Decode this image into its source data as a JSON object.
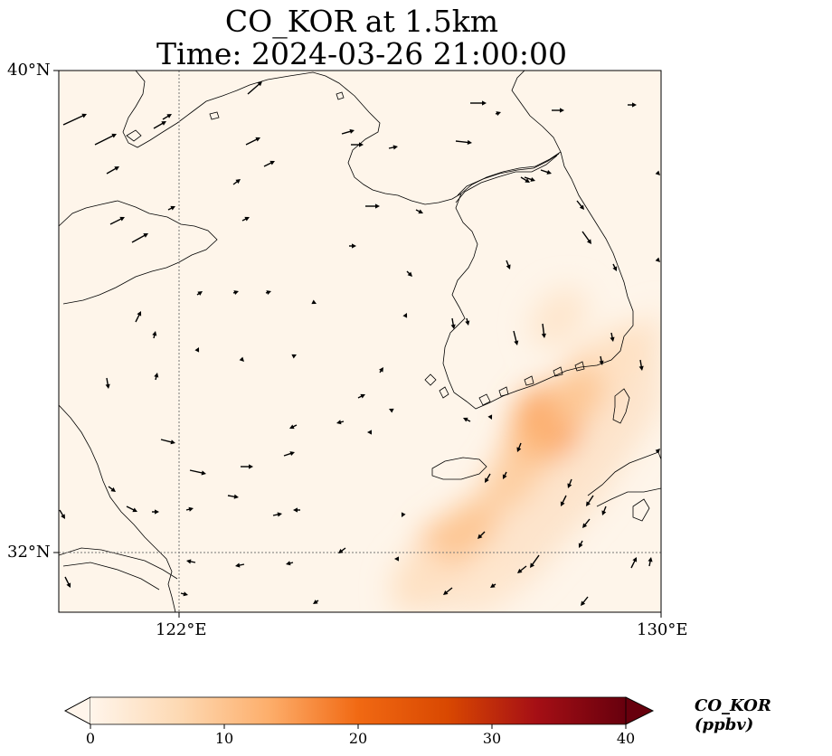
{
  "title": {
    "line1": "CO_KOR at 1.5km",
    "line2": "Time: 2024-03-26 21:00:00"
  },
  "axes": {
    "lat_ticks": [
      "40°N",
      "32°N"
    ],
    "lon_ticks": [
      "122°E",
      "130°E"
    ],
    "lat_range": [
      31,
      40
    ],
    "lon_range": [
      120,
      130
    ]
  },
  "colorbar": {
    "label": "CO_KOR (ppbv)",
    "ticks": [
      "0",
      "10",
      "20",
      "30",
      "40"
    ],
    "range": [
      0,
      40
    ],
    "extend": "both",
    "colors": [
      "#fff5eb",
      "#fdd9b3",
      "#fdae6b",
      "#f16913",
      "#d94801",
      "#a50f15",
      "#67000d"
    ]
  },
  "colors": {
    "background": "#fef5ea",
    "plume_light": "#fde0c4",
    "plume_mid": "#fcc79a",
    "plume_peak": "#f9a679",
    "coastline": "#000000",
    "grid": "#777777"
  },
  "chart_data": {
    "type": "heatmap",
    "variable": "CO_KOR",
    "units": "ppbv",
    "vmin": 0,
    "vmax": 40,
    "plume_cells": [
      {
        "lon": 128.2,
        "lat": 34.0,
        "value": 13
      },
      {
        "lon": 128.0,
        "lat": 34.3,
        "value": 12
      },
      {
        "lon": 127.8,
        "lat": 33.7,
        "value": 10
      },
      {
        "lon": 126.4,
        "lat": 32.1,
        "value": 10
      },
      {
        "lon": 126.8,
        "lat": 32.4,
        "value": 8
      },
      {
        "lon": 128.9,
        "lat": 35.0,
        "value": 7
      },
      {
        "lon": 128.6,
        "lat": 34.6,
        "value": 8
      },
      {
        "lon": 127.5,
        "lat": 33.2,
        "value": 7
      },
      {
        "lon": 129.3,
        "lat": 35.3,
        "value": 4
      },
      {
        "lon": 128.3,
        "lat": 35.9,
        "value": 3
      },
      {
        "lon": 126.0,
        "lat": 31.6,
        "value": 4
      },
      {
        "lon": 127.1,
        "lat": 31.6,
        "value": 3
      }
    ]
  }
}
